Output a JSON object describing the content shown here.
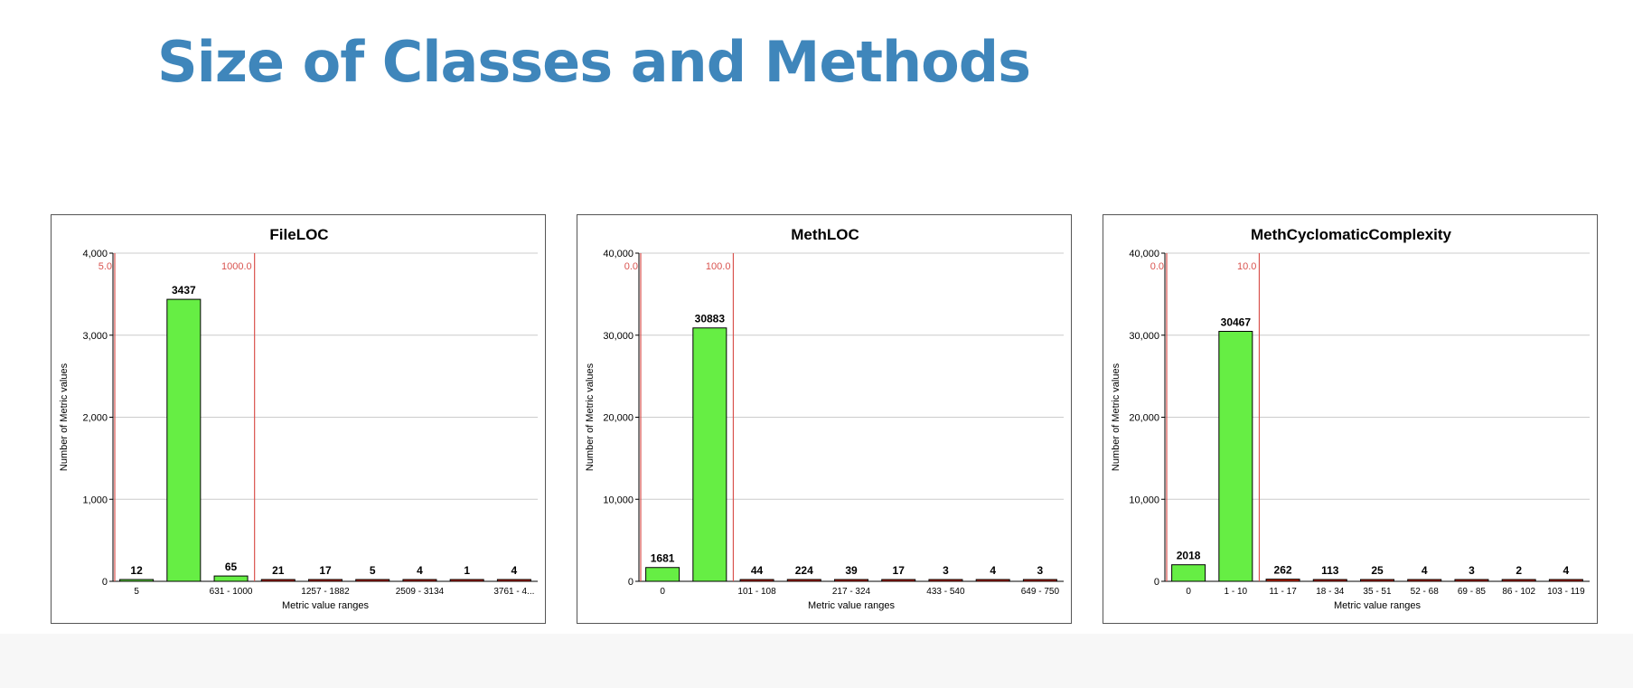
{
  "slide": {
    "title": "Size of Classes and Methods"
  },
  "colors": {
    "title": "#3f86bb",
    "bar_in_range": "#66ee44",
    "bar_out_of_range": "#cc2200",
    "threshold": "#d9534f",
    "grid": "#cccccc"
  },
  "chart_data": [
    {
      "type": "bar",
      "title": "FileLOC",
      "xlabel": "Metric value ranges",
      "ylabel": "Number of Metric values",
      "ylim": [
        0,
        4000
      ],
      "yticks": [
        "0",
        "1,000",
        "2,000",
        "3,000",
        "4,000"
      ],
      "grid": true,
      "values": [
        12,
        3437,
        65,
        21,
        17,
        5,
        4,
        1,
        4
      ],
      "category_labels": [
        "5",
        "",
        "631 - 1000",
        "",
        "1257 - 1882",
        "",
        "2509 - 3134",
        "",
        "3761 - 4..."
      ],
      "thresholds": [
        {
          "label": "5.0",
          "after_bar": 0
        },
        {
          "label": "1000.0",
          "after_bar": 3
        }
      ]
    },
    {
      "type": "bar",
      "title": "MethLOC",
      "xlabel": "Metric value ranges",
      "ylabel": "Number of Metric values",
      "ylim": [
        0,
        40000
      ],
      "yticks": [
        "0",
        "10,000",
        "20,000",
        "30,000",
        "40,000"
      ],
      "grid": true,
      "values": [
        1681,
        30883,
        44,
        224,
        39,
        17,
        3,
        4,
        3
      ],
      "category_labels": [
        "0",
        "",
        "101 - 108",
        "",
        "217 - 324",
        "",
        "433 - 540",
        "",
        "649 - 750"
      ],
      "thresholds": [
        {
          "label": "0.0",
          "after_bar": 0
        },
        {
          "label": "100.0",
          "after_bar": 2
        }
      ]
    },
    {
      "type": "bar",
      "title": "MethCyclomaticComplexity",
      "xlabel": "Metric value ranges",
      "ylabel": "Number of Metric values",
      "ylim": [
        0,
        40000
      ],
      "yticks": [
        "0",
        "10,000",
        "20,000",
        "30,000",
        "40,000"
      ],
      "grid": true,
      "values": [
        2018,
        30467,
        262,
        113,
        25,
        4,
        3,
        2,
        4
      ],
      "category_labels": [
        "0",
        "1 - 10",
        "11 - 17",
        "18 - 34",
        "35 - 51",
        "52 - 68",
        "69 - 85",
        "86 - 102",
        "103 - 119"
      ],
      "thresholds": [
        {
          "label": "0.0",
          "after_bar": 0
        },
        {
          "label": "10.0",
          "after_bar": 2
        }
      ]
    }
  ]
}
